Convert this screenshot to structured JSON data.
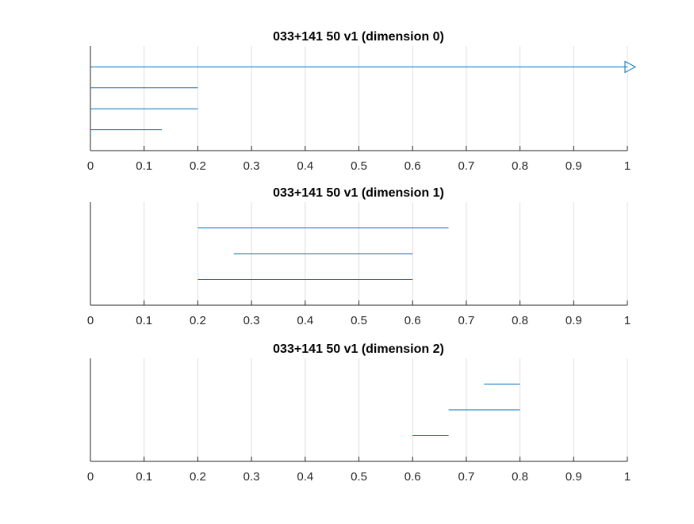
{
  "colors": {
    "series": "#0072BD",
    "grid": "#DFDFDF",
    "axis": "#262626"
  },
  "chart_data": [
    {
      "type": "barcode",
      "title": "033+141 50 v1 (dimension 0)",
      "xlim": [
        0,
        1
      ],
      "xticks": [
        0,
        0.1,
        0.2,
        0.3,
        0.4,
        0.5,
        0.6,
        0.7,
        0.8,
        0.9,
        1
      ],
      "xtick_labels": [
        "0",
        "0.1",
        "0.2",
        "0.3",
        "0.4",
        "0.5",
        "0.6",
        "0.7",
        "0.8",
        "0.9",
        "1"
      ],
      "grid": "x",
      "intervals": [
        {
          "birth": 0,
          "death": 1,
          "infinite": true
        },
        {
          "birth": 0,
          "death": 0.2,
          "infinite": false
        },
        {
          "birth": 0,
          "death": 0.2,
          "infinite": false
        },
        {
          "birth": 0,
          "death": 0.133,
          "infinite": false
        }
      ]
    },
    {
      "type": "barcode",
      "title": "033+141 50 v1 (dimension 1)",
      "xlim": [
        0,
        1
      ],
      "xticks": [
        0,
        0.1,
        0.2,
        0.3,
        0.4,
        0.5,
        0.6,
        0.7,
        0.8,
        0.9,
        1
      ],
      "xtick_labels": [
        "0",
        "0.1",
        "0.2",
        "0.3",
        "0.4",
        "0.5",
        "0.6",
        "0.7",
        "0.8",
        "0.9",
        "1"
      ],
      "grid": "x",
      "intervals": [
        {
          "birth": 0.2,
          "death": 0.667,
          "infinite": false
        },
        {
          "birth": 0.267,
          "death": 0.6,
          "infinite": false
        },
        {
          "birth": 0.2,
          "death": 0.6,
          "infinite": false
        }
      ]
    },
    {
      "type": "barcode",
      "title": "033+141 50 v1 (dimension 2)",
      "xlim": [
        0,
        1
      ],
      "xticks": [
        0,
        0.1,
        0.2,
        0.3,
        0.4,
        0.5,
        0.6,
        0.7,
        0.8,
        0.9,
        1
      ],
      "xtick_labels": [
        "0",
        "0.1",
        "0.2",
        "0.3",
        "0.4",
        "0.5",
        "0.6",
        "0.7",
        "0.8",
        "0.9",
        "1"
      ],
      "grid": "x",
      "intervals": [
        {
          "birth": 0.733,
          "death": 0.8,
          "infinite": false
        },
        {
          "birth": 0.667,
          "death": 0.8,
          "infinite": false
        },
        {
          "birth": 0.6,
          "death": 0.667,
          "infinite": false
        }
      ]
    }
  ]
}
